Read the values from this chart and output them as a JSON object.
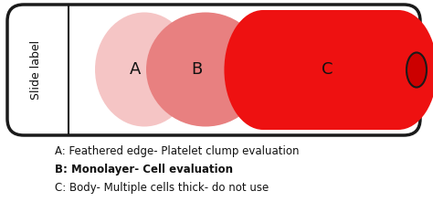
{
  "bg_color": "#ffffff",
  "fig_w": 4.74,
  "fig_h": 2.44,
  "dpi": 100,
  "slide_label_text": "Slide label",
  "outer_box_color": "#1a1a1a",
  "slide_bg": "#ffffff",
  "annotation_A": "A: Feathered edge- Platelet clump evaluation",
  "annotation_B": "B: Monolayer- Cell evaluation",
  "annotation_C": "C: Body- Multiple cells thick- do not use",
  "label_color": "#111111",
  "color_A": "#f5c5c5",
  "color_B": "#e88080",
  "color_C": "#ee1111",
  "color_nub": "#cc0000"
}
